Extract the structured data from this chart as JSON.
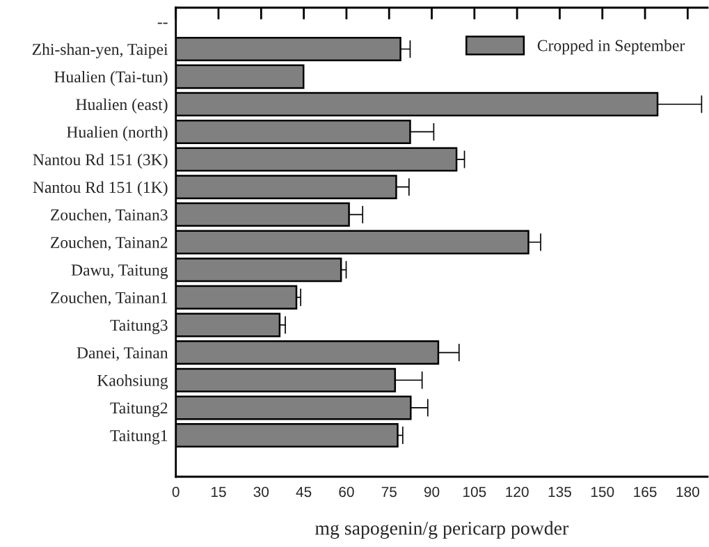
{
  "chart_data": {
    "type": "bar",
    "orientation": "horizontal",
    "xlabel": "mg sapogenin/g pericarp powder",
    "categories": [
      "--",
      "Zhi-shan-yen, Taipei",
      "Hualien (Tai-tun)",
      "Hualien (east)",
      "Hualien (north)",
      "Nantou Rd 151 (3K)",
      "Nantou Rd 151 (1K)",
      "Zouchen, Tainan3",
      "Zouchen, Tainan2",
      "Dawu, Taitung",
      "Zouchen, Tainan1",
      "Taitung3",
      "Danei, Tainan",
      "Kaohsiung",
      "Taitung2",
      "Taitung1",
      null
    ],
    "series": [
      {
        "name": "Cropped in September",
        "color": "#808080",
        "values": [
          null,
          79.0,
          44.9,
          169.4,
          82.4,
          98.7,
          77.5,
          60.9,
          124.0,
          58.1,
          42.4,
          36.5,
          92.3,
          77.1,
          82.6,
          78.0,
          null
        ],
        "errors": [
          null,
          3.4,
          null,
          15.5,
          8.3,
          2.8,
          4.5,
          4.8,
          4.3,
          1.8,
          1.5,
          2.0,
          7.3,
          9.5,
          6.0,
          1.8,
          null
        ]
      }
    ],
    "xlim": [
      0,
      187
    ],
    "xticks": [
      0,
      15,
      30,
      45,
      60,
      75,
      90,
      105,
      120,
      135,
      150,
      165,
      180
    ],
    "legend": "top right",
    "grid": false
  }
}
